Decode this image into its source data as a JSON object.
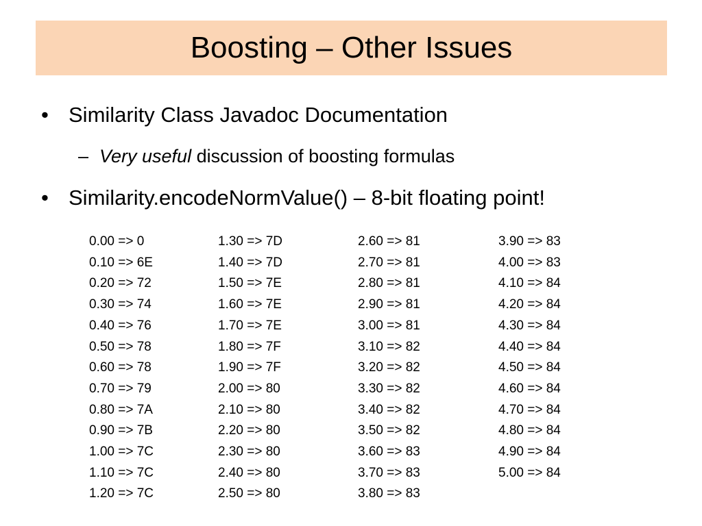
{
  "header": {
    "title": "Boosting – Other Issues"
  },
  "bullets": [
    {
      "text": "Similarity Class Javadoc Documentation",
      "sub": {
        "emphasis": "Very useful",
        "text": "discussion of boosting formulas"
      }
    },
    {
      "text": "Similarity.encodeNormValue() – 8-bit floating point!"
    }
  ],
  "table": {
    "columns": [
      [
        "0.00 => 0",
        "0.10 => 6E",
        "0.20 => 72",
        "0.30 => 74",
        "0.40 => 76",
        "0.50 => 78",
        "0.60 => 78",
        "0.70 => 79",
        "0.80 => 7A",
        "0.90 => 7B",
        "1.00 => 7C",
        "1.10 => 7C",
        "1.20 => 7C"
      ],
      [
        "1.30 => 7D",
        "1.40 => 7D",
        "1.50 => 7E",
        "1.60 => 7E",
        "1.70 => 7E",
        "1.80 => 7F",
        "1.90 => 7F",
        "2.00 => 80",
        "2.10 => 80",
        "2.20 => 80",
        "2.30 => 80",
        "2.40 => 80",
        "2.50 => 80"
      ],
      [
        "2.60 => 81",
        "2.70 => 81",
        "2.80 => 81",
        "2.90 => 81",
        "3.00 => 81",
        "3.10 => 82",
        "3.20 => 82",
        "3.30 => 82",
        "3.40 => 82",
        "3.50 => 82",
        "3.60 => 83",
        "3.70 => 83",
        "3.80 => 83"
      ],
      [
        "3.90 => 83",
        "4.00 => 83",
        "4.10 => 84",
        "4.20 => 84",
        "4.30 => 84",
        "4.40 => 84",
        "4.50 => 84",
        "4.60 => 84",
        "4.70 => 84",
        "4.80 => 84",
        "4.90 => 84",
        "5.00 => 84"
      ]
    ]
  }
}
